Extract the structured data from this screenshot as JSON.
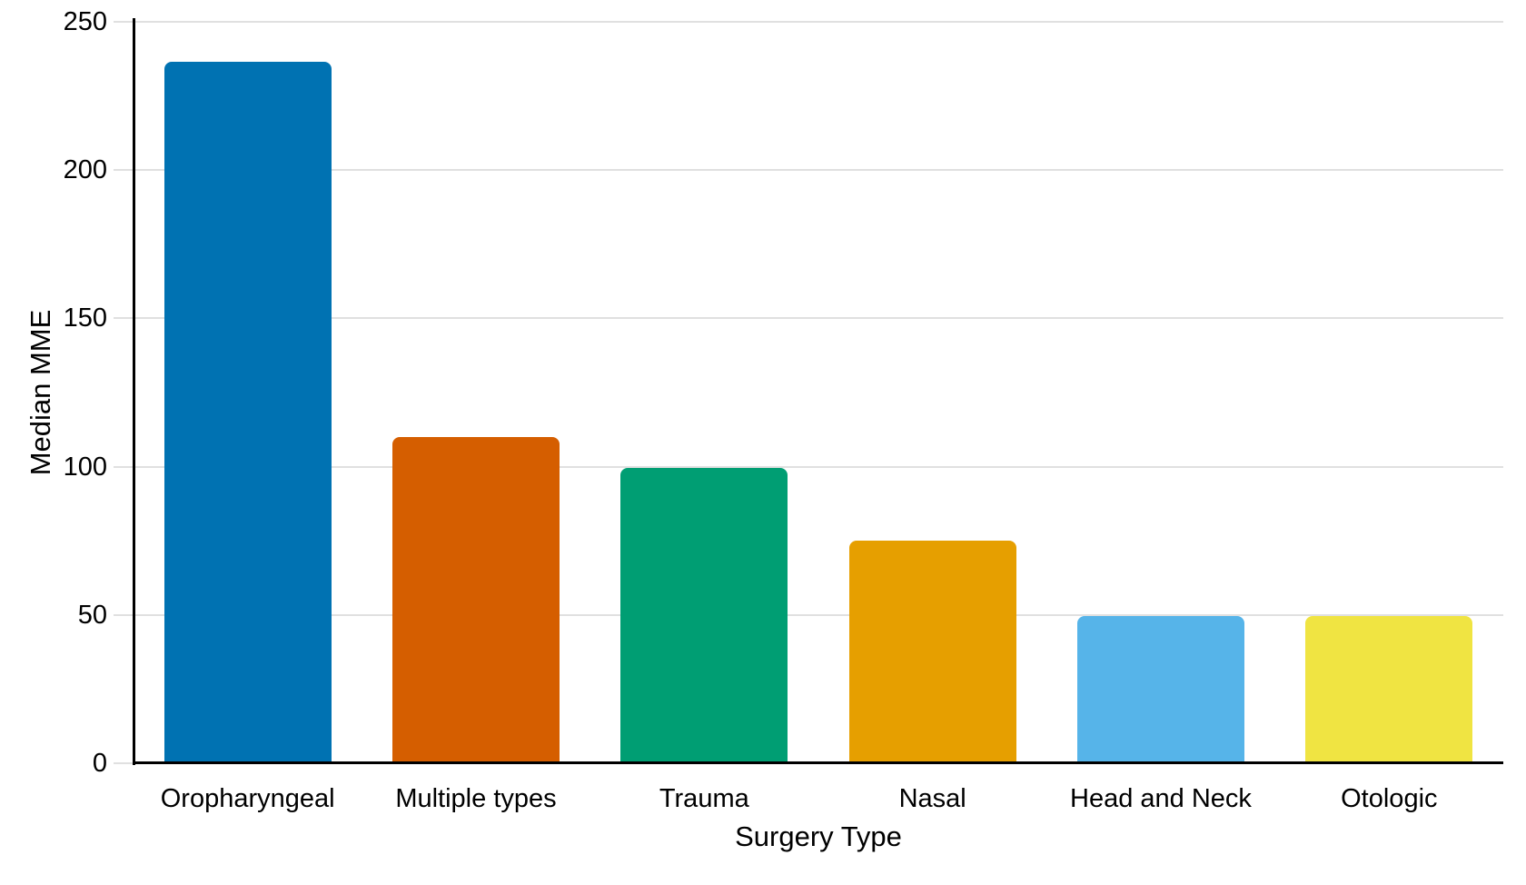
{
  "chart_data": {
    "type": "bar",
    "title": "",
    "xlabel": "Surgery Type",
    "ylabel": "Median MME",
    "categories": [
      "Oropharyngeal",
      "Multiple types",
      "Trauma",
      "Nasal",
      "Head and Neck",
      "Otologic"
    ],
    "values": [
      236.5,
      110,
      99.5,
      75,
      49.5,
      49.5
    ],
    "bar_colors": [
      "#0072B2",
      "#D55E00",
      "#009E73",
      "#E69F00",
      "#56B4E9",
      "#F0E442"
    ],
    "ylim": [
      0,
      250
    ],
    "yticks": [
      0,
      50,
      100,
      150,
      200,
      250
    ],
    "grid": "horizontal",
    "gridline_color": "#e0e0e0",
    "axis_color": "#000000",
    "text_color": "#000000",
    "background_color": "#ffffff",
    "legend": "none"
  }
}
